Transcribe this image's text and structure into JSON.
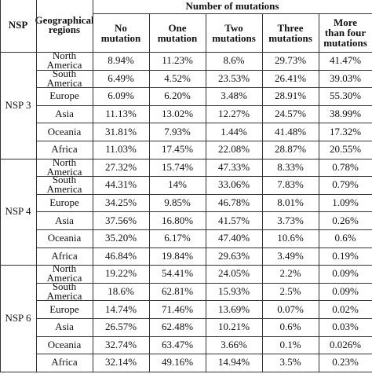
{
  "headers": {
    "nsp": "NSP",
    "geographical_regions": "Geographical regions",
    "number_of_mutations": "Number of mutations",
    "columns": [
      "No mutation",
      "One mutation",
      "Two mutations",
      "Three mutations",
      "More than four mutations"
    ]
  },
  "groups": [
    {
      "label": "NSP 3",
      "rows": [
        {
          "region": "North America",
          "values": [
            "8.94%",
            "11.23%",
            "8.6%",
            "29.73%",
            "41.47%"
          ]
        },
        {
          "region": "South America",
          "values": [
            "6.49%",
            "4.52%",
            "23.53%",
            "26.41%",
            "39.03%"
          ]
        },
        {
          "region": "Europe",
          "values": [
            "6.09%",
            "6.20%",
            "3.48%",
            "28.91%",
            "55.30%"
          ]
        },
        {
          "region": "Asia",
          "values": [
            "11.13%",
            "13.02%",
            "12.27%",
            "24.57%",
            "38.99%"
          ]
        },
        {
          "region": "Oceania",
          "values": [
            "31.81%",
            "7.93%",
            "1.44%",
            "41.48%",
            "17.32%"
          ]
        },
        {
          "region": "Africa",
          "values": [
            "11.03%",
            "17.45%",
            "22.08%",
            "28.87%",
            "20.55%"
          ]
        }
      ]
    },
    {
      "label": "NSP 4",
      "rows": [
        {
          "region": "North America",
          "values": [
            "27.32%",
            "15.74%",
            "47.33%",
            "8.33%",
            "0.78%"
          ]
        },
        {
          "region": "South America",
          "values": [
            "44.31%",
            "14%",
            "33.06%",
            "7.83%",
            "0.79%"
          ]
        },
        {
          "region": "Europe",
          "values": [
            "34.25%",
            "9.85%",
            "46.78%",
            "8.01%",
            "1.09%"
          ]
        },
        {
          "region": "Asia",
          "values": [
            "37.56%",
            "16.80%",
            "41.57%",
            "3.73%",
            "0.26%"
          ]
        },
        {
          "region": "Oceania",
          "values": [
            "35.20%",
            "6.17%",
            "47.40%",
            "10.6%",
            "0.6%"
          ]
        },
        {
          "region": "Africa",
          "values": [
            "46.84%",
            "19.84%",
            "29.63%",
            "3.49%",
            "0.19%"
          ]
        }
      ]
    },
    {
      "label": "NSP 6",
      "rows": [
        {
          "region": "North America",
          "values": [
            "19.22%",
            "54.41%",
            "24.05%",
            "2.2%",
            "0.09%"
          ]
        },
        {
          "region": "South America",
          "values": [
            "18.6%",
            "62.81%",
            "15.93%",
            "2.5%",
            "0.09%"
          ]
        },
        {
          "region": "Europe",
          "values": [
            "14.74%",
            "71.46%",
            "13.69%",
            "0.07%",
            "0.02%"
          ]
        },
        {
          "region": "Asia",
          "values": [
            "26.57%",
            "62.48%",
            "10.21%",
            "0.6%",
            "0.03%"
          ]
        },
        {
          "region": "Oceania",
          "values": [
            "32.74%",
            "63.47%",
            "3.66%",
            "0.1%",
            "0.026%"
          ]
        },
        {
          "region": "Africa",
          "values": [
            "32.14%",
            "49.16%",
            "14.94%",
            "3.5%",
            "0.23%"
          ]
        }
      ]
    }
  ]
}
